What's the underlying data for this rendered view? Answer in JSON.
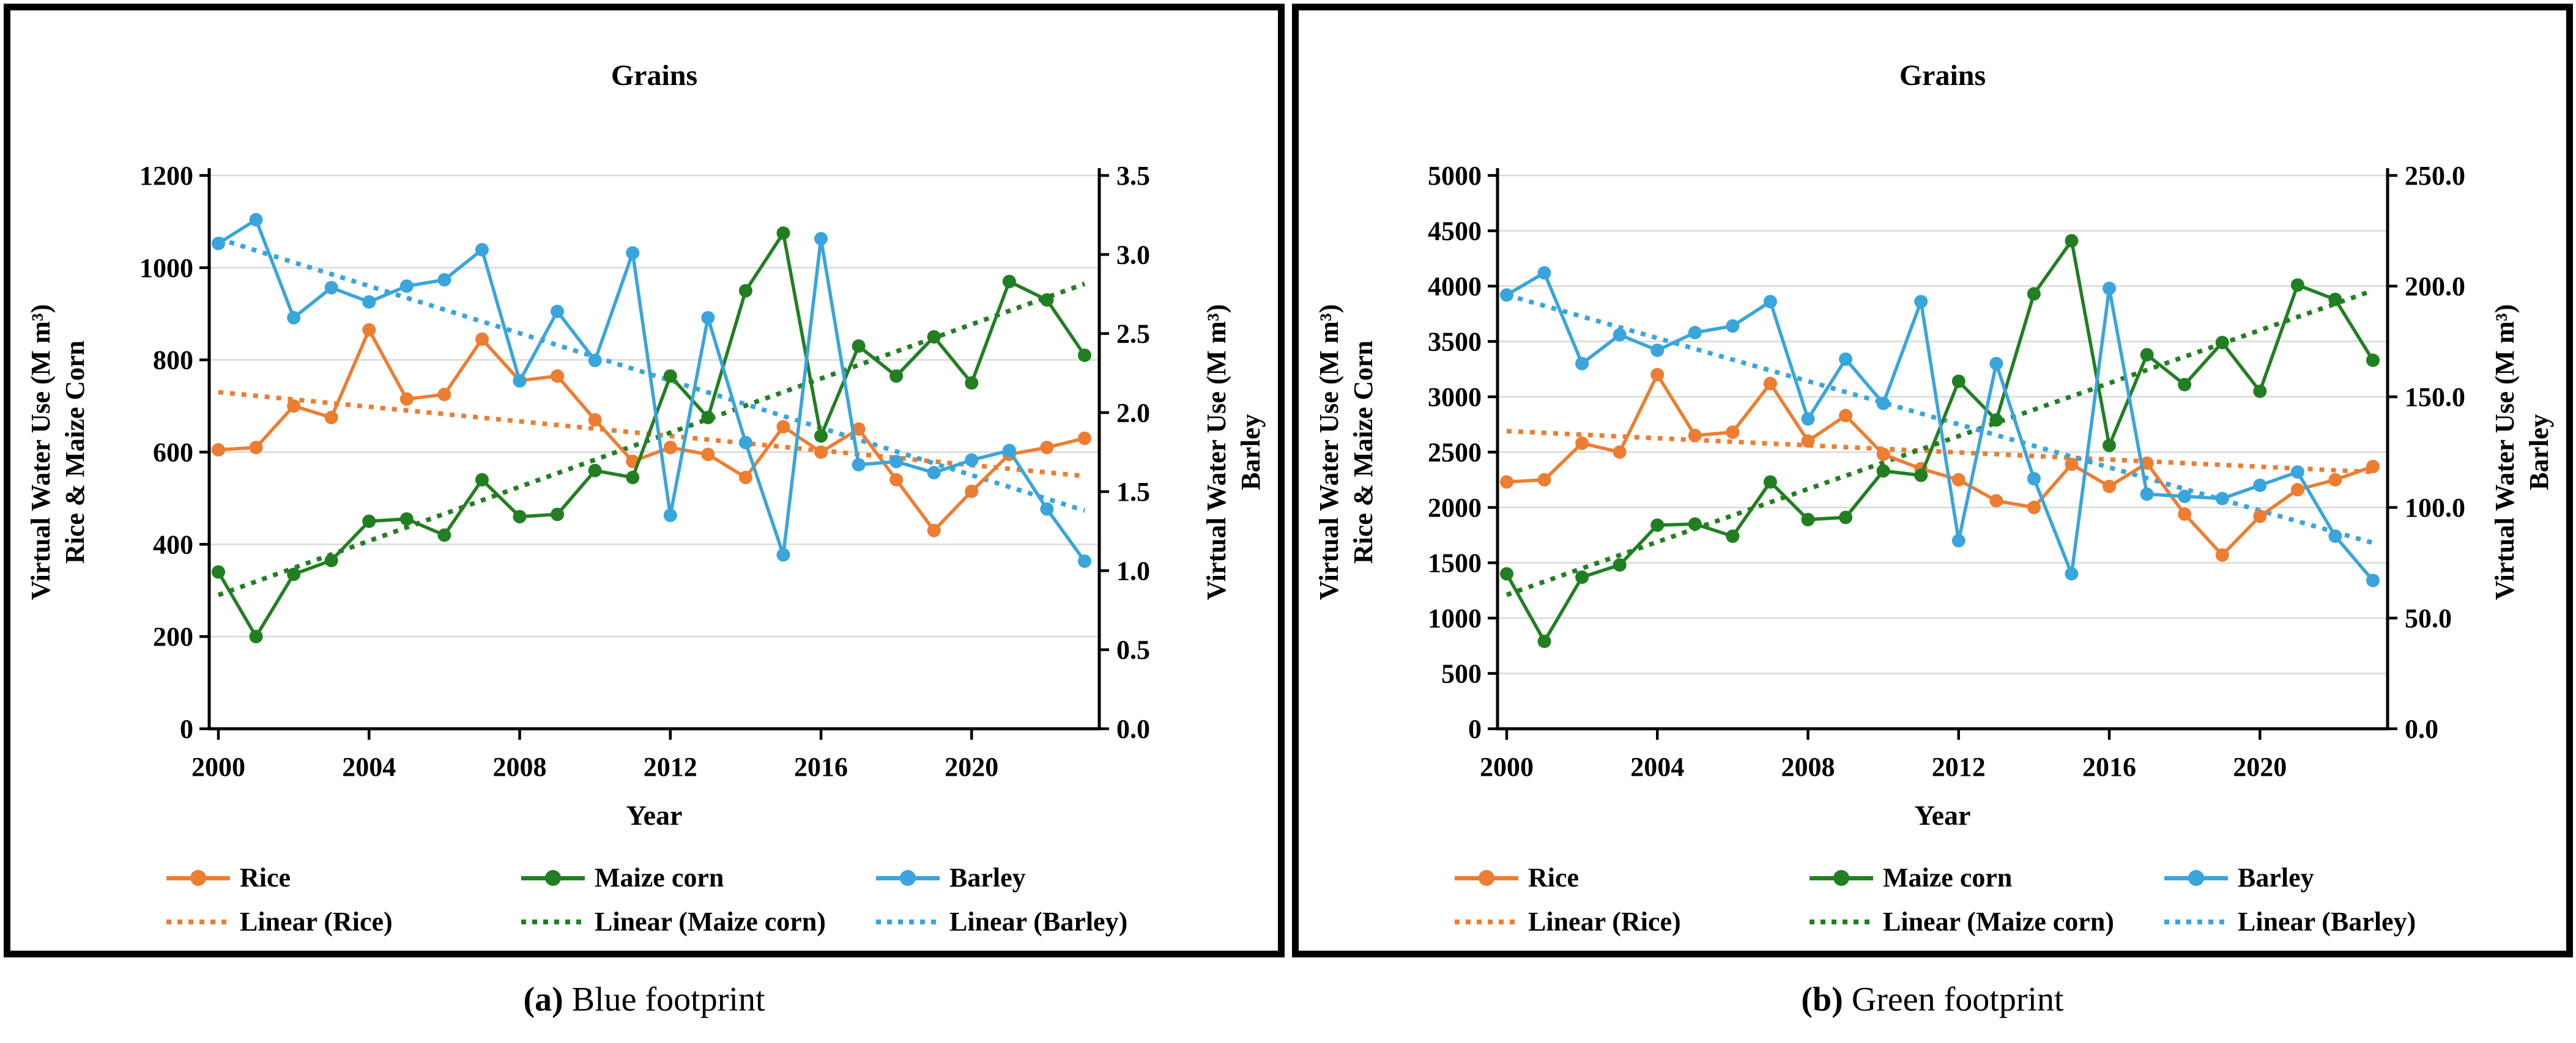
{
  "figure": {
    "panels": [
      {
        "caption_letter": "(a)",
        "caption_text": "Blue footprint"
      },
      {
        "caption_letter": "(b)",
        "caption_text": "Green footprint"
      }
    ]
  },
  "colors": {
    "rice": "#ED7D31",
    "maize": "#217F21",
    "barley": "#39A5DC",
    "grid": "#D9D9D9",
    "axis": "#000000"
  },
  "chart_data": [
    {
      "type": "line",
      "title": "Grains",
      "xlabel": "Year",
      "ylabel_left": [
        "Virtual Water Use (M m³)",
        "Rice & Maize Corn"
      ],
      "ylabel_right": [
        "Virtual Water Use (M m³)",
        "Barley"
      ],
      "x": [
        2000,
        2001,
        2002,
        2003,
        2004,
        2005,
        2006,
        2007,
        2008,
        2009,
        2010,
        2011,
        2012,
        2013,
        2014,
        2015,
        2016,
        2017,
        2018,
        2019,
        2020,
        2021,
        2022,
        2023
      ],
      "x_tick_labels": [
        "2000",
        "2004",
        "2008",
        "2012",
        "2016",
        "2020"
      ],
      "ylim_left": [
        0,
        1200
      ],
      "yticks_left": [
        "0",
        "200",
        "400",
        "600",
        "800",
        "1000",
        "1200"
      ],
      "ylim_right": [
        0,
        3.5
      ],
      "yticks_right": [
        "0.0",
        "0.5",
        "1.0",
        "1.5",
        "2.0",
        "2.5",
        "3.0",
        "3.5"
      ],
      "grid": true,
      "legend_position": "bottom",
      "series": [
        {
          "name": "Rice",
          "axis": "left",
          "color": "#ED7D31",
          "values": [
            605,
            610,
            700,
            675,
            865,
            715,
            725,
            845,
            755,
            765,
            670,
            580,
            610,
            595,
            545,
            655,
            600,
            650,
            540,
            430,
            515,
            595,
            610,
            630
          ]
        },
        {
          "name": "Maize corn",
          "axis": "left",
          "color": "#217F21",
          "values": [
            340,
            200,
            335,
            365,
            450,
            455,
            420,
            540,
            460,
            465,
            560,
            545,
            765,
            675,
            950,
            1075,
            635,
            830,
            765,
            850,
            750,
            970,
            930,
            810
          ]
        },
        {
          "name": "Barley",
          "axis": "right",
          "color": "#39A5DC",
          "values": [
            3.07,
            3.22,
            2.6,
            2.79,
            2.7,
            2.8,
            2.84,
            3.03,
            2.2,
            2.64,
            2.33,
            3.01,
            1.35,
            2.6,
            1.81,
            1.1,
            3.1,
            1.67,
            1.69,
            1.62,
            1.7,
            1.76,
            1.39,
            1.06
          ]
        }
      ],
      "trendlines": [
        {
          "name": "Linear (Rice)",
          "axis": "left",
          "color": "#ED7D31",
          "start": 730,
          "end": 548
        },
        {
          "name": "Linear (Maize corn)",
          "axis": "left",
          "color": "#217F21",
          "start": 290,
          "end": 965
        },
        {
          "name": "Linear (Barley)",
          "axis": "right",
          "color": "#39A5DC",
          "start": 3.1,
          "end": 1.38
        }
      ]
    },
    {
      "type": "line",
      "title": "Grains",
      "xlabel": "Year",
      "ylabel_left": [
        "Virtual Water Use (M m³)",
        "Rice & Maize Corn"
      ],
      "ylabel_right": [
        "Virtual Water Use (M m³)",
        "Barley"
      ],
      "x": [
        2000,
        2001,
        2002,
        2003,
        2004,
        2005,
        2006,
        2007,
        2008,
        2009,
        2010,
        2011,
        2012,
        2013,
        2014,
        2015,
        2016,
        2017,
        2018,
        2019,
        2020,
        2021,
        2022,
        2023
      ],
      "x_tick_labels": [
        "2000",
        "2004",
        "2008",
        "2012",
        "2016",
        "2020"
      ],
      "ylim_left": [
        0,
        5000
      ],
      "yticks_left": [
        "0",
        "500",
        "1000",
        "1500",
        "2000",
        "2500",
        "3000",
        "3500",
        "4000",
        "4500",
        "5000"
      ],
      "ylim_right": [
        0,
        250
      ],
      "yticks_right": [
        "0.0",
        "50.0",
        "100.0",
        "150.0",
        "200.0",
        "250.0"
      ],
      "grid": true,
      "legend_position": "bottom",
      "series": [
        {
          "name": "Rice",
          "axis": "left",
          "color": "#ED7D31",
          "values": [
            2230,
            2250,
            2580,
            2500,
            3200,
            2650,
            2680,
            3120,
            2600,
            2830,
            2480,
            2350,
            2250,
            2060,
            2000,
            2390,
            2190,
            2400,
            1940,
            1570,
            1920,
            2160,
            2250,
            2370
          ]
        },
        {
          "name": "Maize corn",
          "axis": "left",
          "color": "#217F21",
          "values": [
            1400,
            790,
            1370,
            1480,
            1840,
            1850,
            1740,
            2230,
            1890,
            1910,
            2330,
            2290,
            3140,
            2790,
            3930,
            4410,
            2560,
            3380,
            3110,
            3490,
            3050,
            4010,
            3880,
            3330
          ]
        },
        {
          "name": "Barley",
          "axis": "right",
          "color": "#39A5DC",
          "values": [
            196,
            206,
            165,
            178,
            171,
            179,
            182,
            193,
            140,
            167,
            147,
            193,
            85,
            165,
            113,
            70,
            199,
            106,
            105,
            104,
            110,
            116,
            87,
            67
          ]
        }
      ],
      "trendlines": [
        {
          "name": "Linear (Rice)",
          "axis": "left",
          "color": "#ED7D31",
          "start": 2690,
          "end": 2320
        },
        {
          "name": "Linear (Maize corn)",
          "axis": "left",
          "color": "#217F21",
          "start": 1210,
          "end": 3960
        },
        {
          "name": "Linear (Barley)",
          "axis": "right",
          "color": "#39A5DC",
          "start": 196,
          "end": 84
        }
      ]
    }
  ]
}
